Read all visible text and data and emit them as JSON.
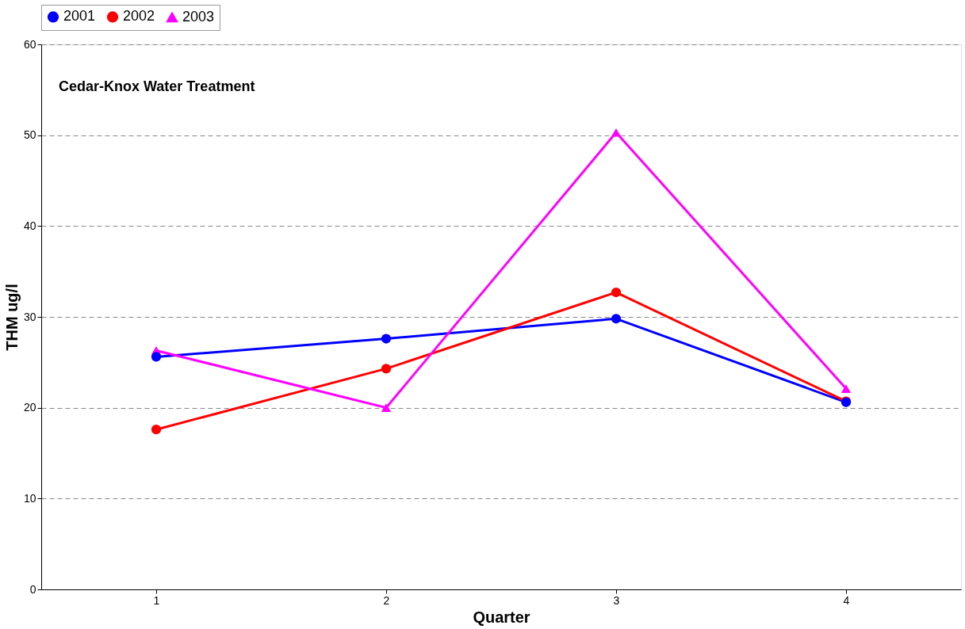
{
  "chart_data": {
    "type": "line",
    "title": "Cedar-Knox Water Treatment",
    "xlabel": "Quarter",
    "ylabel": "THM ug/l",
    "categories": [
      "1",
      "2",
      "3",
      "4"
    ],
    "series": [
      {
        "name": "2001",
        "color": "#0000ff",
        "marker": "circle",
        "values": [
          25.6,
          27.6,
          29.8,
          20.6
        ]
      },
      {
        "name": "2002",
        "color": "#ff0000",
        "marker": "circle",
        "values": [
          17.6,
          24.3,
          32.7,
          20.7
        ]
      },
      {
        "name": "2003",
        "color": "#ff00ff",
        "marker": "triangle",
        "values": [
          26.3,
          20.0,
          50.3,
          22.1
        ]
      }
    ],
    "ylim": [
      0,
      60
    ],
    "yticks": [
      0,
      10,
      20,
      30,
      40,
      50,
      60
    ],
    "grid": "y",
    "legend": "top",
    "line_style": "solid"
  }
}
